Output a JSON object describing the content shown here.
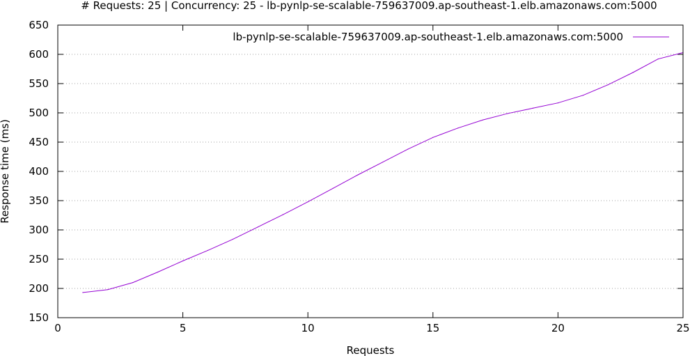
{
  "chart_data": {
    "type": "line",
    "title": "# Requests: 25 | Concurrency: 25 - lb-pynlp-se-scalable-759637009.ap-southeast-1.elb.amazonaws.com:5000",
    "xlabel": "Requests",
    "ylabel": "Response time (ms)",
    "xlim": [
      0,
      25
    ],
    "ylim": [
      150,
      650
    ],
    "xticks": [
      0,
      5,
      10,
      15,
      20,
      25
    ],
    "yticks": [
      150,
      200,
      250,
      300,
      350,
      400,
      450,
      500,
      550,
      600,
      650
    ],
    "grid": true,
    "legend_position": "top-right",
    "series": [
      {
        "name": "lb-pynlp-se-scalable-759637009.ap-southeast-1.elb.amazonaws.com:5000",
        "color": "#9400d3",
        "x": [
          1,
          2,
          3,
          4,
          5,
          6,
          7,
          8,
          9,
          10,
          11,
          12,
          13,
          14,
          15,
          16,
          17,
          18,
          19,
          20,
          21,
          22,
          23,
          24,
          25
        ],
        "y": [
          193,
          198,
          210,
          228,
          247,
          265,
          284,
          305,
          326,
          348,
          371,
          394,
          416,
          438,
          458,
          474,
          488,
          499,
          508,
          517,
          530,
          548,
          569,
          592,
          603
        ]
      }
    ]
  }
}
